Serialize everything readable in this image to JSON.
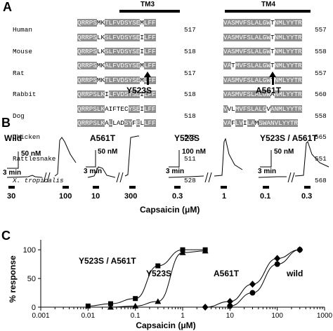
{
  "panel_a": {
    "letter": "A",
    "tm3_label": "TM3",
    "tm4_label": "TM4",
    "species": [
      "Human",
      "Mouse",
      "Rat",
      "Rabbit",
      "Dog",
      "Chicken",
      "Rattlesnake",
      "X. tropicalis"
    ],
    "tm3_numbers": [
      "517",
      "518",
      "517",
      "518",
      "518",
      "525",
      "511",
      "528"
    ],
    "tm4_numbers": [
      "557",
      "558",
      "557",
      "560",
      "558",
      "565",
      "551",
      "568"
    ],
    "mutation_left": "Y523S",
    "mutation_right": "A561T"
  },
  "panel_b": {
    "letter": "B",
    "xlabel": "Capsaicin (μM)",
    "traces": [
      {
        "title": "Wild",
        "scale_nm": "50 nM",
        "scale_time": "3 min",
        "doses": [
          "30",
          "100"
        ]
      },
      {
        "title": "A561T",
        "scale_nm": "50 nM",
        "scale_time": "3 min",
        "doses": [
          "10",
          "300"
        ]
      },
      {
        "title": "Y523S",
        "scale_nm": "100 nM",
        "scale_time": "3 min",
        "doses": [
          "0.3",
          "1"
        ]
      },
      {
        "title": "Y523S / A561T",
        "scale_nm": "50 nM",
        "scale_time": "3 min",
        "doses": [
          "0.1",
          "0.3"
        ]
      }
    ]
  },
  "panel_c": {
    "letter": "C",
    "chart_data": {
      "type": "scatter",
      "xlabel": "Capsaicin (μM)",
      "ylabel": "% response",
      "xscale": "log",
      "xlim": [
        0.001,
        1000
      ],
      "ylim": [
        0,
        110
      ],
      "x_ticks": [
        "0.001",
        "0.01",
        "0.1",
        "1",
        "10",
        "100",
        "1000"
      ],
      "y_ticks": [
        "0",
        "50",
        "100"
      ],
      "series": [
        {
          "name": "Y523S / A561T",
          "marker": "square",
          "x": [
            0.01,
            0.03,
            0.1,
            0.3,
            1,
            3
          ],
          "y": [
            2,
            6,
            15,
            72,
            100,
            100
          ]
        },
        {
          "name": "Y523S",
          "marker": "triangle",
          "x": [
            0.03,
            0.1,
            0.3,
            1,
            3
          ],
          "y": [
            0,
            2,
            10,
            95,
            98
          ]
        },
        {
          "name": "A561T",
          "marker": "diamond",
          "x": [
            3,
            10,
            30,
            100,
            300
          ],
          "y": [
            0,
            10,
            40,
            85,
            100
          ]
        },
        {
          "name": "wild",
          "marker": "circle",
          "x": [
            10,
            30,
            100,
            300
          ],
          "y": [
            2,
            25,
            75,
            100
          ]
        }
      ]
    }
  }
}
